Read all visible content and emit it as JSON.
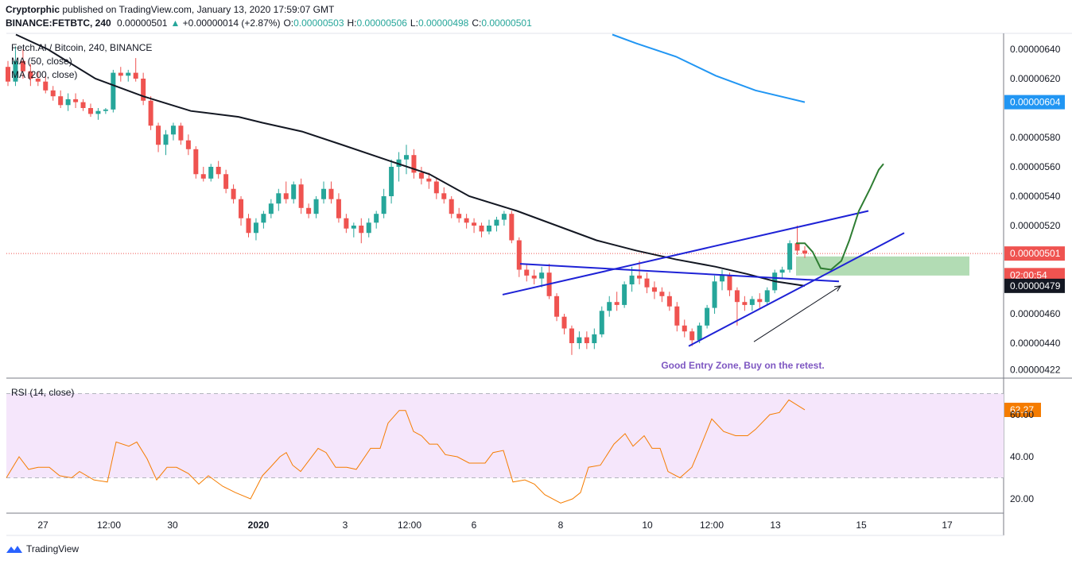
{
  "header": {
    "publisher_name": "Cryptorphic",
    "published_text": " published on TradingView.com, January 13, 2020 17:59:07 GMT",
    "symbol": "BINANCE:FETBTC, 240",
    "last": "0.00000501",
    "change": "+0.00000014 (+2.87%)",
    "o_label": "O:",
    "o_value": "0.00000503",
    "h_label": "H:",
    "h_value": "0.00000506",
    "l_label": "L:",
    "l_value": "0.00000498",
    "c_label": "C:",
    "c_value": "0.00000501"
  },
  "legend": {
    "title": "Fetch.AI / Bitcoin, 240, BINANCE",
    "ma50": "MA (50, close)",
    "ma200": "MA (200, close)",
    "rsi": "RSI (14, close)"
  },
  "annotation": "Good Entry Zone, Buy on the retest.",
  "footer": {
    "brand": "TradingView"
  },
  "colors": {
    "up": "#26a69a",
    "down": "#ef5350",
    "ma50": "#131722",
    "ma200": "#2196f3",
    "rsi_line": "#f57c00",
    "rsi_band": "#f5e6fb",
    "trendline": "#1e22d6",
    "zone": "#a5d6a7",
    "projection": "#2e7d32",
    "price_line": "#ef5350"
  },
  "chart_data": [
    {
      "type": "candlestick",
      "x_tick_labels": [
        "27",
        "12:00",
        "30",
        "2020",
        "3",
        "12:00",
        "6",
        "8",
        "10",
        "12:00",
        "13",
        "15",
        "17"
      ],
      "y_ticks": [
        6.4e-06,
        6.2e-06,
        5.8e-06,
        5.6e-06,
        5.4e-06,
        5.2e-06,
        4.6e-06,
        4.4e-06,
        4.22e-06
      ],
      "y_tick_labels": [
        "0.00000640",
        "0.00000620",
        "0.00000580",
        "0.00000560",
        "0.00000540",
        "0.00000520",
        "0.00000460",
        "0.00000440",
        "0.00000422"
      ],
      "ylim": [
        4.18e-06,
        6.5e-06
      ],
      "price_badges": [
        {
          "label": "0.00000604",
          "value": 6.04e-06,
          "color": "#2196f3"
        },
        {
          "label": "0.00000501",
          "value": 5.01e-06,
          "color": "#ef5350"
        },
        {
          "label": "02:00:54",
          "value": 4.89e-06,
          "color": "#ef5350"
        },
        {
          "label": "0.00000479",
          "value": 4.79e-06,
          "color": "#131722"
        }
      ],
      "ohlc": [
        [
          6.28e-06,
          6.32e-06,
          6.15e-06,
          6.18e-06
        ],
        [
          6.18e-06,
          6.42e-06,
          6.15e-06,
          6.32e-06
        ],
        [
          6.32e-06,
          6.4e-06,
          6.2e-06,
          6.25e-06
        ],
        [
          6.25e-06,
          6.3e-06,
          6.15e-06,
          6.2e-06
        ],
        [
          6.2e-06,
          6.25e-06,
          6.15e-06,
          6.18e-06
        ],
        [
          6.18e-06,
          6.22e-06,
          6.1e-06,
          6.12e-06
        ],
        [
          6.12e-06,
          6.15e-06,
          6.05e-06,
          6.08e-06
        ],
        [
          6.08e-06,
          6.12e-06,
          6e-06,
          6.02e-06
        ],
        [
          6.02e-06,
          6.1e-06,
          5.98e-06,
          6.06e-06
        ],
        [
          6.06e-06,
          6.1e-06,
          6e-06,
          6.04e-06
        ],
        [
          6.04e-06,
          6.06e-06,
          5.98e-06,
          6e-06
        ],
        [
          6e-06,
          6.03e-06,
          5.94e-06,
          5.96e-06
        ],
        [
          5.96e-06,
          6e-06,
          5.92e-06,
          5.98e-06
        ],
        [
          5.98e-06,
          6e-06,
          5.96e-06,
          5.99e-06
        ],
        [
          5.99e-06,
          6.26e-06,
          5.97e-06,
          6.24e-06
        ],
        [
          6.24e-06,
          6.28e-06,
          6.18e-06,
          6.22e-06
        ],
        [
          6.22e-06,
          6.26e-06,
          6.18e-06,
          6.24e-06
        ],
        [
          6.24e-06,
          6.34e-06,
          6.18e-06,
          6.2e-06
        ],
        [
          6.2e-06,
          6.24e-06,
          6.02e-06,
          6.05e-06
        ],
        [
          6.05e-06,
          6.08e-06,
          5.85e-06,
          5.88e-06
        ],
        [
          5.88e-06,
          5.9e-06,
          5.7e-06,
          5.75e-06
        ],
        [
          5.75e-06,
          5.85e-06,
          5.68e-06,
          5.82e-06
        ],
        [
          5.82e-06,
          5.9e-06,
          5.78e-06,
          5.88e-06
        ],
        [
          5.88e-06,
          5.9e-06,
          5.75e-06,
          5.78e-06
        ],
        [
          5.78e-06,
          5.82e-06,
          5.68e-06,
          5.72e-06
        ],
        [
          5.72e-06,
          5.74e-06,
          5.52e-06,
          5.55e-06
        ],
        [
          5.55e-06,
          5.6e-06,
          5.5e-06,
          5.52e-06
        ],
        [
          5.52e-06,
          5.62e-06,
          5.5e-06,
          5.6e-06
        ],
        [
          5.6e-06,
          5.64e-06,
          5.52e-06,
          5.55e-06
        ],
        [
          5.55e-06,
          5.58e-06,
          5.42e-06,
          5.45e-06
        ],
        [
          5.45e-06,
          5.48e-06,
          5.35e-06,
          5.38e-06
        ],
        [
          5.38e-06,
          5.4e-06,
          5.2e-06,
          5.25e-06
        ],
        [
          5.25e-06,
          5.28e-06,
          5.12e-06,
          5.15e-06
        ],
        [
          5.15e-06,
          5.25e-06,
          5.1e-06,
          5.22e-06
        ],
        [
          5.22e-06,
          5.3e-06,
          5.18e-06,
          5.28e-06
        ],
        [
          5.28e-06,
          5.38e-06,
          5.25e-06,
          5.35e-06
        ],
        [
          5.35e-06,
          5.45e-06,
          5.3e-06,
          5.42e-06
        ],
        [
          5.42e-06,
          5.5e-06,
          5.35e-06,
          5.38e-06
        ],
        [
          5.38e-06,
          5.5e-06,
          5.35e-06,
          5.48e-06
        ],
        [
          5.48e-06,
          5.52e-06,
          5.28e-06,
          5.32e-06
        ],
        [
          5.32e-06,
          5.35e-06,
          5.25e-06,
          5.28e-06
        ],
        [
          5.28e-06,
          5.4e-06,
          5.25e-06,
          5.38e-06
        ],
        [
          5.38e-06,
          5.5e-06,
          5.35e-06,
          5.45e-06
        ],
        [
          5.45e-06,
          5.5e-06,
          5.35e-06,
          5.38e-06
        ],
        [
          5.38e-06,
          5.42e-06,
          5.22e-06,
          5.25e-06
        ],
        [
          5.25e-06,
          5.28e-06,
          5.15e-06,
          5.18e-06
        ],
        [
          5.18e-06,
          5.22e-06,
          5.12e-06,
          5.2e-06
        ],
        [
          5.2e-06,
          5.25e-06,
          5.08e-06,
          5.15e-06
        ],
        [
          5.15e-06,
          5.25e-06,
          5.12e-06,
          5.22e-06
        ],
        [
          5.22e-06,
          5.3e-06,
          5.18e-06,
          5.28e-06
        ],
        [
          5.28e-06,
          5.45e-06,
          5.25e-06,
          5.4e-06
        ],
        [
          5.4e-06,
          5.65e-06,
          5.35e-06,
          5.6e-06
        ],
        [
          5.6e-06,
          5.7e-06,
          5.5e-06,
          5.65e-06
        ],
        [
          5.65e-06,
          5.75e-06,
          5.55e-06,
          5.68e-06
        ],
        [
          5.68e-06,
          5.72e-06,
          5.52e-06,
          5.56e-06
        ],
        [
          5.56e-06,
          5.6e-06,
          5.48e-06,
          5.52e-06
        ],
        [
          5.52e-06,
          5.56e-06,
          5.45e-06,
          5.5e-06
        ],
        [
          5.5e-06,
          5.52e-06,
          5.38e-06,
          5.42e-06
        ],
        [
          5.42e-06,
          5.46e-06,
          5.35e-06,
          5.38e-06
        ],
        [
          5.38e-06,
          5.4e-06,
          5.25e-06,
          5.28e-06
        ],
        [
          5.28e-06,
          5.32e-06,
          5.22e-06,
          5.25e-06
        ],
        [
          5.25e-06,
          5.28e-06,
          5.18e-06,
          5.22e-06
        ],
        [
          5.22e-06,
          5.25e-06,
          5.15e-06,
          5.2e-06
        ],
        [
          5.2e-06,
          5.22e-06,
          5.12e-06,
          5.16e-06
        ],
        [
          5.16e-06,
          5.24e-06,
          5.14e-06,
          5.2e-06
        ],
        [
          5.2e-06,
          5.26e-06,
          5.16e-06,
          5.24e-06
        ],
        [
          5.24e-06,
          5.3e-06,
          5.2e-06,
          5.28e-06
        ],
        [
          5.28e-06,
          5.3e-06,
          5.08e-06,
          5.1e-06
        ],
        [
          5.1e-06,
          5.12e-06,
          4.85e-06,
          4.9e-06
        ],
        [
          4.9e-06,
          4.94e-06,
          4.82e-06,
          4.86e-06
        ],
        [
          4.86e-06,
          4.9e-06,
          4.8e-06,
          4.84e-06
        ],
        [
          4.84e-06,
          4.92e-06,
          4.78e-06,
          4.88e-06
        ],
        [
          4.88e-06,
          4.94e-06,
          4.7e-06,
          4.72e-06
        ],
        [
          4.72e-06,
          4.74e-06,
          4.55e-06,
          4.58e-06
        ],
        [
          4.58e-06,
          4.6e-06,
          4.46e-06,
          4.5e-06
        ],
        [
          4.5e-06,
          4.52e-06,
          4.32e-06,
          4.4e-06
        ],
        [
          4.4e-06,
          4.48e-06,
          4.36e-06,
          4.44e-06
        ],
        [
          4.44e-06,
          4.48e-06,
          4.36e-06,
          4.4e-06
        ],
        [
          4.4e-06,
          4.5e-06,
          4.36e-06,
          4.46e-06
        ],
        [
          4.46e-06,
          4.65e-06,
          4.44e-06,
          4.62e-06
        ],
        [
          4.62e-06,
          4.72e-06,
          4.58e-06,
          4.68e-06
        ],
        [
          4.68e-06,
          4.75e-06,
          4.62e-06,
          4.66e-06
        ],
        [
          4.66e-06,
          4.82e-06,
          4.64e-06,
          4.8e-06
        ],
        [
          4.8e-06,
          4.92e-06,
          4.75e-06,
          4.86e-06
        ],
        [
          4.86e-06,
          4.96e-06,
          4.8e-06,
          4.84e-06
        ],
        [
          4.84e-06,
          4.88e-06,
          4.74e-06,
          4.78e-06
        ],
        [
          4.78e-06,
          4.82e-06,
          4.7e-06,
          4.75e-06
        ],
        [
          4.75e-06,
          4.78e-06,
          4.68e-06,
          4.72e-06
        ],
        [
          4.72e-06,
          4.75e-06,
          4.62e-06,
          4.65e-06
        ],
        [
          4.65e-06,
          4.68e-06,
          4.48e-06,
          4.52e-06
        ],
        [
          4.52e-06,
          4.56e-06,
          4.44e-06,
          4.48e-06
        ],
        [
          4.48e-06,
          4.5e-06,
          4.38e-06,
          4.42e-06
        ],
        [
          4.42e-06,
          4.54e-06,
          4.4e-06,
          4.52e-06
        ],
        [
          4.52e-06,
          4.66e-06,
          4.5e-06,
          4.64e-06
        ],
        [
          4.64e-06,
          4.86e-06,
          4.6e-06,
          4.82e-06
        ],
        [
          4.82e-06,
          4.9e-06,
          4.76e-06,
          4.86e-06
        ],
        [
          4.86e-06,
          4.88e-06,
          4.72e-06,
          4.76e-06
        ],
        [
          4.76e-06,
          4.78e-06,
          4.52e-06,
          4.68e-06
        ],
        [
          4.68e-06,
          4.72e-06,
          4.62e-06,
          4.66e-06
        ],
        [
          4.66e-06,
          4.72e-06,
          4.62e-06,
          4.7e-06
        ],
        [
          4.7e-06,
          4.74e-06,
          4.64e-06,
          4.68e-06
        ],
        [
          4.68e-06,
          4.78e-06,
          4.66e-06,
          4.76e-06
        ],
        [
          4.76e-06,
          4.9e-06,
          4.74e-06,
          4.88e-06
        ],
        [
          4.88e-06,
          4.92e-06,
          4.84e-06,
          4.9e-06
        ],
        [
          4.9e-06,
          5.1e-06,
          4.88e-06,
          5.08e-06
        ],
        [
          5.08e-06,
          5.2e-06,
          5e-06,
          5.03e-06
        ],
        [
          5.03e-06,
          5.06e-06,
          4.98e-06,
          5.01e-06
        ]
      ],
      "ma50": [
        [
          20,
          6.5e-06
        ],
        [
          60,
          6.4e-06
        ],
        [
          120,
          6.2e-06
        ],
        [
          180,
          6.08e-06
        ],
        [
          240,
          5.98e-06
        ],
        [
          300,
          5.94e-06
        ],
        [
          330,
          5.9e-06
        ],
        [
          380,
          5.84e-06
        ],
        [
          430,
          5.75e-06
        ],
        [
          490,
          5.64e-06
        ],
        [
          540,
          5.55e-06
        ],
        [
          590,
          5.4e-06
        ],
        [
          650,
          5.3e-06
        ],
        [
          700,
          5.2e-06
        ],
        [
          750,
          5.1e-06
        ],
        [
          800,
          5.03e-06
        ],
        [
          850,
          4.97e-06
        ],
        [
          900,
          4.92e-06
        ],
        [
          940,
          4.87e-06
        ],
        [
          975,
          4.82e-06
        ],
        [
          1012,
          4.79e-06
        ]
      ],
      "ma200": [
        [
          770,
          6.5e-06
        ],
        [
          800,
          6.44e-06
        ],
        [
          850,
          6.35e-06
        ],
        [
          900,
          6.22e-06
        ],
        [
          950,
          6.12e-06
        ],
        [
          1012,
          6.04e-06
        ]
      ],
      "horizontal_price_line": 5.01e-06,
      "trendlines": [
        {
          "from": [
            632,
            4.73e-06
          ],
          "to": [
            1092,
            5.3e-06
          ]
        },
        {
          "from": [
            654,
            4.94e-06
          ],
          "to": [
            1055,
            4.82e-06
          ]
        },
        {
          "from": [
            866,
            4.38e-06
          ],
          "to": [
            1137,
            5.15e-06
          ]
        }
      ],
      "zone": {
        "x": [
          1001,
          1219
        ],
        "y": [
          4.86e-06,
          4.99e-06
        ]
      },
      "arrow": {
        "from": [
          948,
          4.41e-06
        ],
        "to": [
          1057,
          4.79e-06
        ]
      },
      "projection": [
        [
          1001,
          5.08e-06
        ],
        [
          1012,
          5.08e-06
        ],
        [
          1022,
          5.02e-06
        ],
        [
          1032,
          4.91e-06
        ],
        [
          1045,
          4.9e-06
        ],
        [
          1058,
          4.96e-06
        ],
        [
          1068,
          5.1e-06
        ],
        [
          1080,
          5.3e-06
        ],
        [
          1094,
          5.45e-06
        ],
        [
          1105,
          5.58e-06
        ],
        [
          1111,
          5.62e-06
        ]
      ]
    },
    {
      "type": "line",
      "series_label": "RSI (14, close)",
      "y_ticks": [
        62.27,
        60,
        40,
        20
      ],
      "y_tick_labels": [
        "62.27",
        "60.00",
        "40.00",
        "20.00"
      ],
      "ylim": [
        15,
        75
      ],
      "band": [
        30,
        70
      ],
      "values": [
        [
          8,
          30
        ],
        [
          24,
          40
        ],
        [
          36,
          34
        ],
        [
          48,
          35
        ],
        [
          62,
          35
        ],
        [
          75,
          31
        ],
        [
          90,
          30
        ],
        [
          100,
          33
        ],
        [
          118,
          29
        ],
        [
          135,
          28
        ],
        [
          146,
          47
        ],
        [
          162,
          45
        ],
        [
          172,
          47
        ],
        [
          185,
          39
        ],
        [
          197,
          29
        ],
        [
          210,
          35
        ],
        [
          222,
          35
        ],
        [
          237,
          32
        ],
        [
          250,
          27
        ],
        [
          262,
          31
        ],
        [
          280,
          26
        ],
        [
          296,
          23
        ],
        [
          315,
          20
        ],
        [
          330,
          31
        ],
        [
          340,
          35
        ],
        [
          352,
          40
        ],
        [
          360,
          42
        ],
        [
          368,
          36
        ],
        [
          378,
          33
        ],
        [
          400,
          44
        ],
        [
          410,
          42
        ],
        [
          422,
          35
        ],
        [
          436,
          35
        ],
        [
          448,
          34
        ],
        [
          466,
          44
        ],
        [
          478,
          44
        ],
        [
          488,
          56
        ],
        [
          502,
          62
        ],
        [
          510,
          62
        ],
        [
          520,
          52
        ],
        [
          530,
          50
        ],
        [
          540,
          46
        ],
        [
          550,
          46
        ],
        [
          560,
          41
        ],
        [
          575,
          40
        ],
        [
          590,
          37
        ],
        [
          610,
          37
        ],
        [
          620,
          42
        ],
        [
          633,
          43
        ],
        [
          645,
          28
        ],
        [
          660,
          29
        ],
        [
          672,
          27
        ],
        [
          685,
          22
        ],
        [
          705,
          18
        ],
        [
          720,
          20
        ],
        [
          730,
          23
        ],
        [
          740,
          35
        ],
        [
          755,
          36
        ],
        [
          772,
          46
        ],
        [
          786,
          51
        ],
        [
          796,
          45
        ],
        [
          810,
          50
        ],
        [
          820,
          44
        ],
        [
          830,
          44
        ],
        [
          840,
          33
        ],
        [
          855,
          30
        ],
        [
          870,
          35
        ],
        [
          880,
          44
        ],
        [
          895,
          58
        ],
        [
          910,
          52
        ],
        [
          925,
          50
        ],
        [
          940,
          50
        ],
        [
          950,
          53
        ],
        [
          968,
          60
        ],
        [
          980,
          61
        ],
        [
          992,
          67
        ],
        [
          1012,
          62.27
        ]
      ]
    }
  ]
}
